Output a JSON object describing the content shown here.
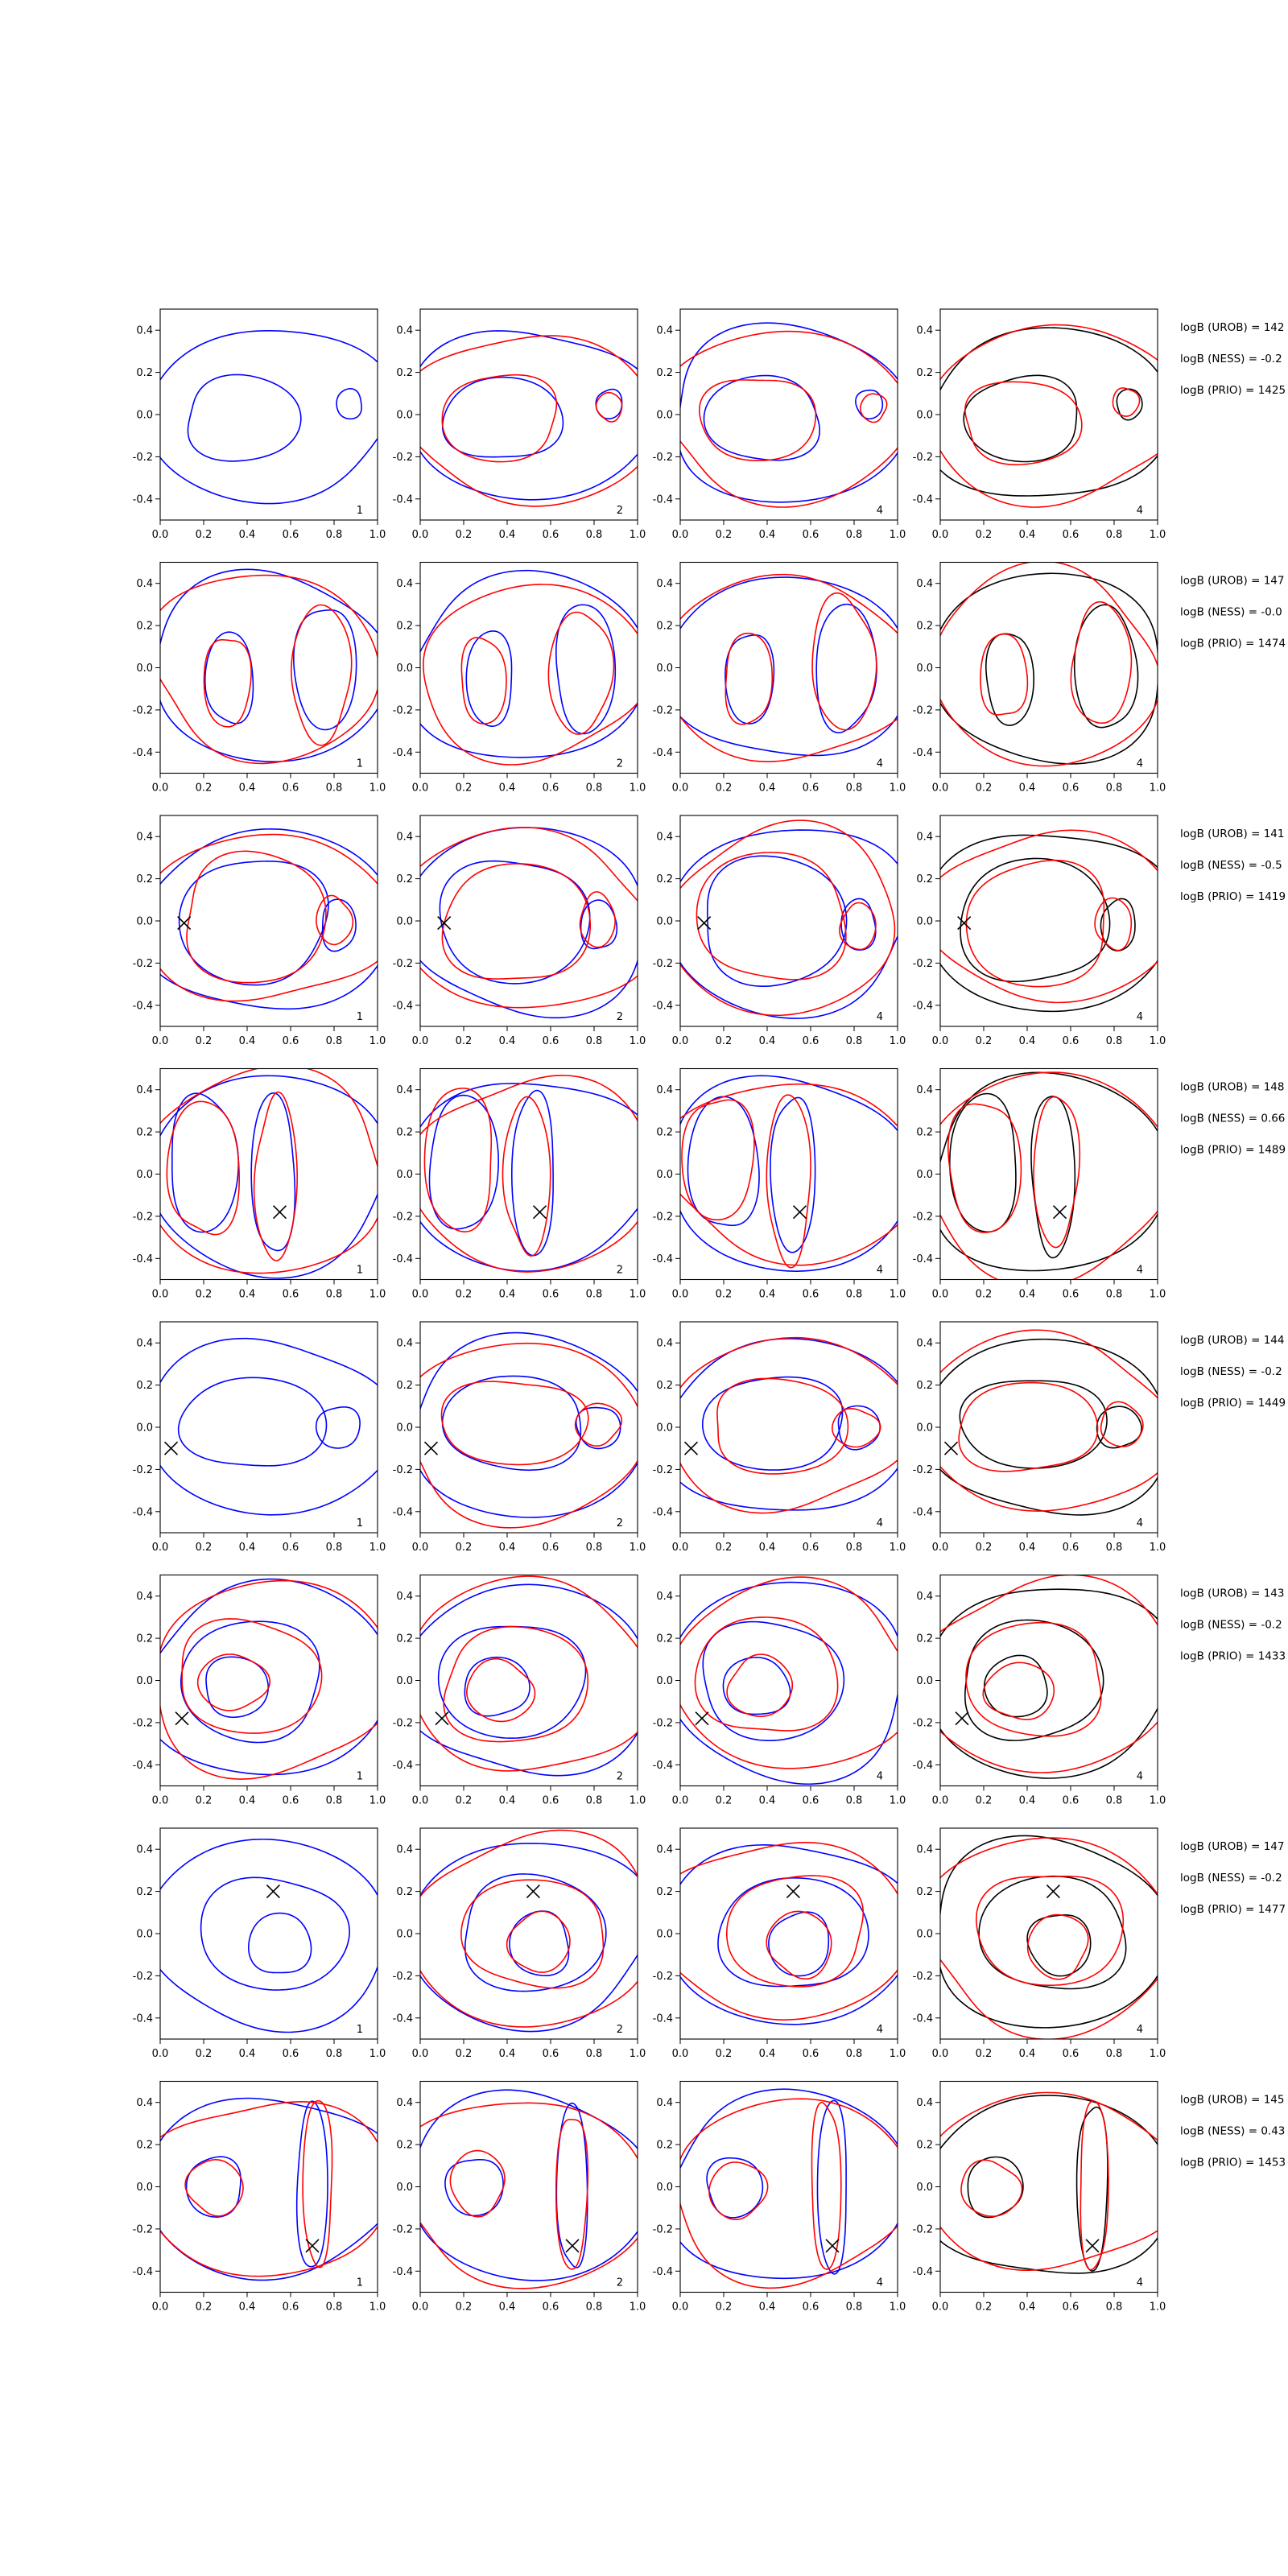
{
  "colors": {
    "red": "#ff0000",
    "blue": "#0000ff",
    "black": "#000000"
  },
  "chart_data": {
    "type": "contour",
    "xlim": [
      0.0,
      1.0
    ],
    "ylim": [
      -0.5,
      0.5
    ],
    "xticks": [
      "0.0",
      "0.2",
      "0.4",
      "0.6",
      "0.8",
      "1.0"
    ],
    "yticks": [
      "0.4",
      "0.2",
      "0.0",
      "-0.2",
      "-0.4"
    ],
    "panel_labels": [
      "1",
      "2",
      "4",
      "4"
    ],
    "rows": [
      {
        "marker": null,
        "annotations": [
          "logB (UROB) = 142",
          "logB (NESS) = -0.2",
          "logB (PRIO) = 1425"
        ]
      },
      {
        "marker": null,
        "annotations": [
          "logB (UROB) = 147",
          "logB (NESS) = -0.0",
          "logB (PRIO) = 1474"
        ]
      },
      {
        "marker": [
          0.11,
          -0.01
        ],
        "annotations": [
          "logB (UROB) = 141",
          "logB (NESS) = -0.5",
          "logB (PRIO) = 1419"
        ]
      },
      {
        "marker": [
          0.55,
          -0.18
        ],
        "annotations": [
          "logB (UROB) = 148",
          "logB (NESS) = 0.66",
          "logB (PRIO) = 1489"
        ]
      },
      {
        "marker": [
          0.05,
          -0.1
        ],
        "annotations": [
          "logB (UROB) = 144",
          "logB (NESS) = -0.2",
          "logB (PRIO) = 1449"
        ]
      },
      {
        "marker": [
          0.1,
          -0.18
        ],
        "annotations": [
          "logB (UROB) = 143",
          "logB (NESS) = -0.2",
          "logB (PRIO) = 1433"
        ]
      },
      {
        "marker": [
          0.52,
          0.2
        ],
        "annotations": [
          "logB (UROB) = 147",
          "logB (NESS) = -0.2",
          "logB (PRIO) = 1477"
        ]
      },
      {
        "marker": [
          0.7,
          -0.28
        ],
        "annotations": [
          "logB (UROB) = 145",
          "logB (NESS) = 0.43",
          "logB (PRIO) = 1453"
        ]
      }
    ]
  }
}
